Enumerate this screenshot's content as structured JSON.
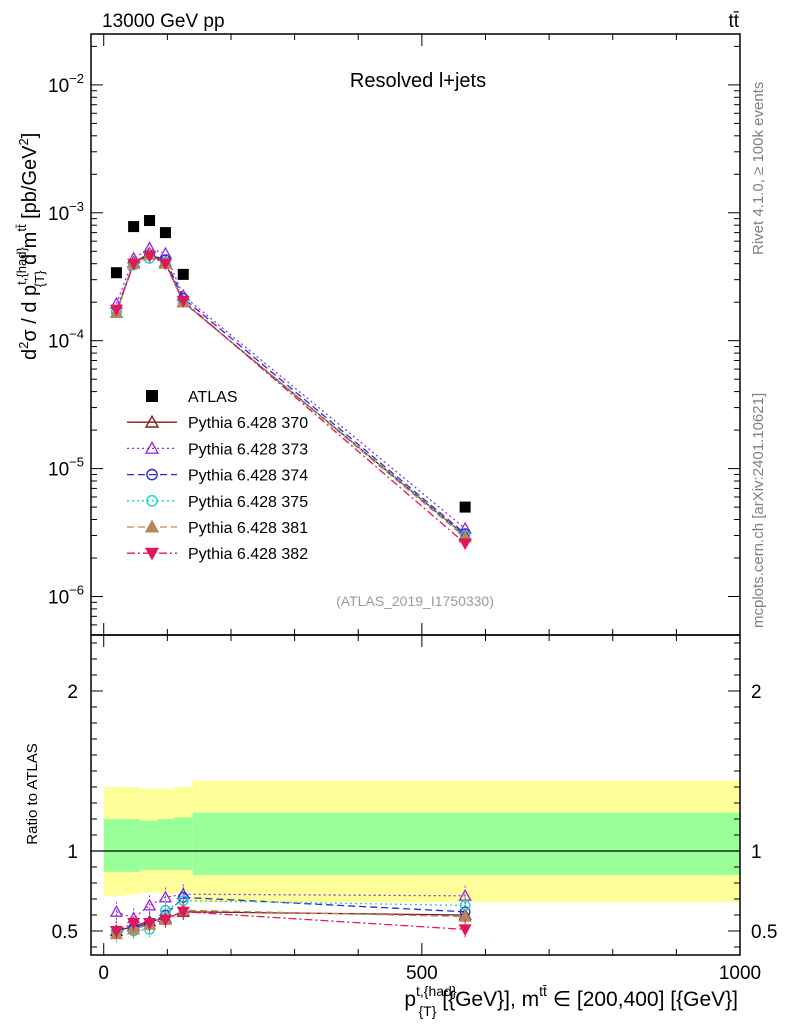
{
  "header": {
    "energy_label": "13000 GeV pp",
    "process_label": "tt̄"
  },
  "side_labels": {
    "rivet": "Rivet 4.1.0, ≥ 100k events",
    "mcplots": "mcplots.cern.ch [arXiv:2401.10621]"
  },
  "colors": {
    "data": "#000000",
    "p370": "#7f1d1d",
    "p373": "#9b30d9",
    "p374": "#2a2ad8",
    "p375": "#19d3c5",
    "p381": "#b8875a",
    "p382": "#e0185a",
    "band_outer": "#ffff99",
    "band_inner": "#99ff99"
  },
  "chart_data": [
    {
      "type": "line",
      "panel": "main",
      "title": "Resolved l+jets",
      "analysis_tag": "(ATLAS_2019_I1750330)",
      "ylabel": "d²σ / d p^{t,{had}}_{T} d m^{t̄t} [pb/GeV²]",
      "yscale": "log",
      "ylim": [
        5e-07,
        0.025
      ],
      "xlim": [
        -20,
        1000
      ],
      "y_ticks": [
        {
          "value": 1e-06,
          "label": "10",
          "exp": "−6"
        },
        {
          "value": 1e-05,
          "label": "10",
          "exp": "−5"
        },
        {
          "value": 0.0001,
          "label": "10",
          "exp": "−4"
        },
        {
          "value": 0.001,
          "label": "10",
          "exp": "−3"
        },
        {
          "value": 0.01,
          "label": "10",
          "exp": "−2"
        }
      ],
      "x": [
        20,
        47,
        72,
        97,
        125,
        568
      ],
      "series": [
        {
          "key": "data",
          "name": "ATLAS",
          "marker": "square",
          "dash": "",
          "values": [
            0.00034,
            0.00078,
            0.00087,
            0.0007,
            0.00033,
            5e-06
          ]
        },
        {
          "key": "p370",
          "name": "Pythia 6.428 370",
          "marker": "tri-open",
          "dash": "",
          "values": [
            0.000165,
            0.00041,
            0.00048,
            0.00041,
            0.0002,
            3e-06
          ]
        },
        {
          "key": "p373",
          "name": "Pythia 6.428 373",
          "marker": "tri-open",
          "dash": "2,3",
          "values": [
            0.000195,
            0.00044,
            0.00053,
            0.00048,
            0.000225,
            3.4e-06
          ]
        },
        {
          "key": "p374",
          "name": "Pythia 6.428 374",
          "marker": "circle-open",
          "dash": "7,4",
          "values": [
            0.000168,
            0.0004,
            0.00047,
            0.00043,
            0.000215,
            3.1e-06
          ]
        },
        {
          "key": "p375",
          "name": "Pythia 6.428 375",
          "marker": "circle-open",
          "dash": "2,3",
          "values": [
            0.00017,
            0.00039,
            0.00044,
            0.00041,
            0.0002,
            3e-06
          ]
        },
        {
          "key": "p381",
          "name": "Pythia 6.428 381",
          "marker": "tri-filled",
          "dash": "7,4",
          "values": [
            0.000165,
            0.0004,
            0.00047,
            0.0004,
            0.0002,
            2.9e-06
          ]
        },
        {
          "key": "p382",
          "name": "Pythia 6.428 382",
          "marker": "tri-down-filled",
          "dash": "8,3,2,3",
          "values": [
            0.000175,
            0.0004,
            0.00046,
            0.0004,
            0.000205,
            2.6e-06
          ]
        }
      ]
    },
    {
      "type": "line",
      "panel": "ratio",
      "ylabel": "Ratio to ATLAS",
      "xlabel": "p^{t,{had}}_{T} [{GeV}], m^{t̄t} ∈ [200,400] [{GeV}]",
      "ylim": [
        0.35,
        2.35
      ],
      "xlim": [
        -20,
        1000
      ],
      "y_ticks": [
        0.5,
        1,
        2
      ],
      "x_ticks": [
        0,
        500,
        1000
      ],
      "x": [
        20,
        47,
        72,
        97,
        125,
        568
      ],
      "band_edges": [
        0,
        35,
        58,
        85,
        110,
        140,
        1000
      ],
      "band_outer": [
        [
          0.72,
          1.4
        ],
        [
          0.73,
          1.4
        ],
        [
          0.74,
          1.39
        ],
        [
          0.73,
          1.39
        ],
        [
          0.74,
          1.4
        ],
        [
          0.68,
          1.44
        ]
      ],
      "band_inner": [
        [
          0.87,
          1.2
        ],
        [
          0.87,
          1.2
        ],
        [
          0.88,
          1.19
        ],
        [
          0.88,
          1.2
        ],
        [
          0.88,
          1.21
        ],
        [
          0.85,
          1.24
        ]
      ],
      "series": [
        {
          "key": "p370",
          "values": [
            0.5,
            0.53,
            0.56,
            0.58,
            0.62,
            0.6
          ]
        },
        {
          "key": "p373",
          "values": [
            0.62,
            0.58,
            0.66,
            0.71,
            0.73,
            0.72
          ]
        },
        {
          "key": "p374",
          "values": [
            0.5,
            0.52,
            0.55,
            0.6,
            0.71,
            0.62
          ]
        },
        {
          "key": "p375",
          "values": [
            0.5,
            0.5,
            0.51,
            0.63,
            0.69,
            0.66
          ]
        },
        {
          "key": "p381",
          "values": [
            0.48,
            0.51,
            0.54,
            0.57,
            0.63,
            0.59
          ]
        },
        {
          "key": "p382",
          "values": [
            0.5,
            0.55,
            0.55,
            0.57,
            0.62,
            0.51
          ]
        }
      ]
    }
  ]
}
